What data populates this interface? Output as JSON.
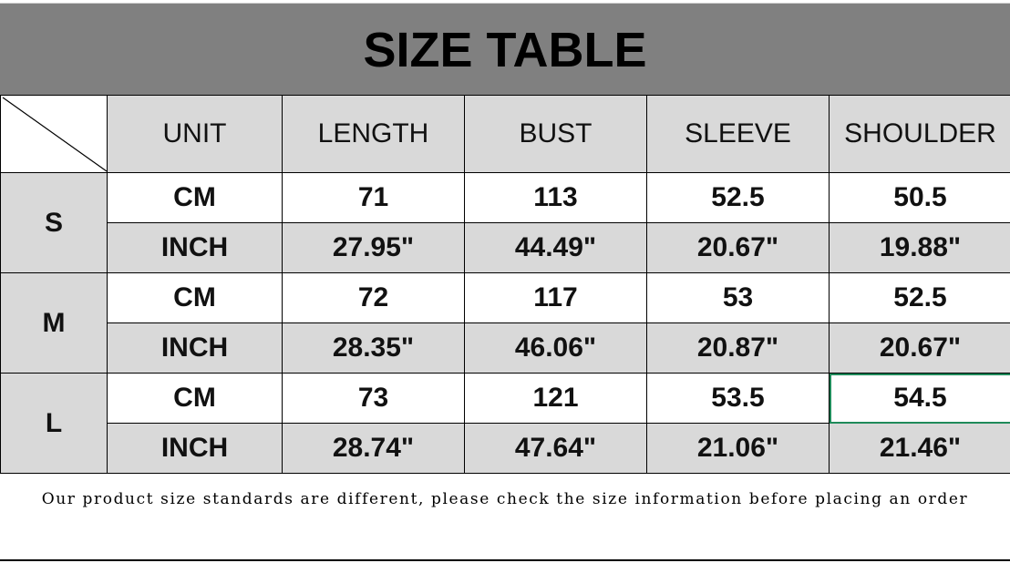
{
  "title": "SIZE TABLE",
  "headers": [
    "UNIT",
    "LENGTH",
    "BUST",
    "SLEEVE",
    "SHOULDER"
  ],
  "sizes": [
    {
      "size": "S",
      "cm": {
        "unit": "CM",
        "values": [
          "71",
          "113",
          "52.5",
          "50.5"
        ]
      },
      "inch": {
        "unit": "INCH",
        "values": [
          "27.95\"",
          "44.49\"",
          "20.67\"",
          "19.88\""
        ]
      }
    },
    {
      "size": "M",
      "cm": {
        "unit": "CM",
        "values": [
          "72",
          "117",
          "53",
          "52.5"
        ]
      },
      "inch": {
        "unit": "INCH",
        "values": [
          "28.35\"",
          "46.06\"",
          "20.87\"",
          "20.67\""
        ]
      }
    },
    {
      "size": "L",
      "cm": {
        "unit": "CM",
        "values": [
          "73",
          "121",
          "53.5",
          "54.5"
        ]
      },
      "inch": {
        "unit": "INCH",
        "values": [
          "28.74\"",
          "47.64\"",
          "21.06\"",
          "21.46\""
        ]
      }
    }
  ],
  "note": "Our product size standards are different, please check the size information before placing an order",
  "colors": {
    "title_bg": "#808080",
    "cell_gray": "#d9d9d9",
    "selection": "#1f8a5a"
  }
}
